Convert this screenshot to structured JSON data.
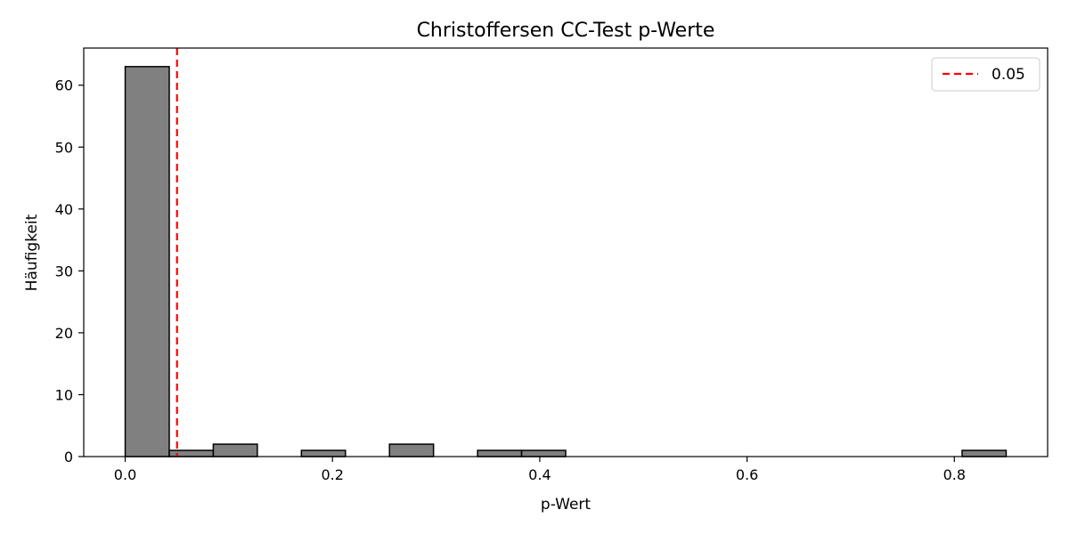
{
  "chart_data": {
    "type": "bar",
    "title": "Christoffersen CC-Test p-Werte",
    "xlabel": "p-Wert",
    "ylabel": "Häufigkeit",
    "xlim": [
      -0.04,
      0.89
    ],
    "ylim": [
      0,
      66
    ],
    "xticks": [
      0.0,
      0.2,
      0.4,
      0.6,
      0.8
    ],
    "xtick_labels": [
      "0.0",
      "0.2",
      "0.4",
      "0.6",
      "0.8"
    ],
    "yticks": [
      0,
      10,
      20,
      30,
      40,
      50,
      60
    ],
    "ytick_labels": [
      "0",
      "10",
      "20",
      "30",
      "40",
      "50",
      "60"
    ],
    "bin_width": 0.0425,
    "bins": [
      {
        "x0": 0.0,
        "x1": 0.0425,
        "count": 63
      },
      {
        "x0": 0.0425,
        "x1": 0.085,
        "count": 1
      },
      {
        "x0": 0.085,
        "x1": 0.1275,
        "count": 2
      },
      {
        "x0": 0.17,
        "x1": 0.2125,
        "count": 1
      },
      {
        "x0": 0.255,
        "x1": 0.2975,
        "count": 2
      },
      {
        "x0": 0.34,
        "x1": 0.3825,
        "count": 1
      },
      {
        "x0": 0.3825,
        "x1": 0.425,
        "count": 1
      },
      {
        "x0": 0.8075,
        "x1": 0.85,
        "count": 1
      }
    ],
    "bar_color": "#808080",
    "bar_edge_color": "#000000",
    "reference_line": {
      "x": 0.05,
      "label": "0.05",
      "color": "#ff0000",
      "style": "dashed"
    },
    "legend_position": "top-right",
    "grid": false
  }
}
